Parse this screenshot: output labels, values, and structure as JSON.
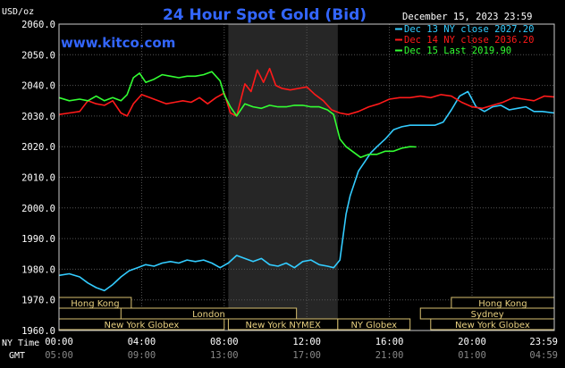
{
  "chart_data": {
    "type": "line",
    "title": "24 Hour Spot Gold (Bid)",
    "watermark": "www.kitco.com",
    "date_label": "December 15, 2023 23:59",
    "ylabel": "USD/oz",
    "ylim": [
      1960,
      2060
    ],
    "yticks": [
      "2060.0",
      "2050.0",
      "2040.0",
      "2030.0",
      "2020.0",
      "2010.0",
      "2000.0",
      "1990.0",
      "1980.0",
      "1970.0",
      "1960.0"
    ],
    "x_range_hours": [
      0,
      23.983
    ],
    "xticks_ny": [
      "00:00",
      "04:00",
      "08:00",
      "12:00",
      "16:00",
      "20:00",
      "23:59"
    ],
    "xticks_gmt": [
      "05:00",
      "09:00",
      "13:00",
      "17:00",
      "21:00",
      "01:00",
      "04:59"
    ],
    "row_labels": {
      "ny": "NY Time",
      "gmt": "GMT"
    },
    "sessions": [
      {
        "label": "Hong Kong",
        "row": 0,
        "start": 0,
        "end": 3.5
      },
      {
        "label": "London",
        "row": 1,
        "start": 3.0,
        "end": 11.5
      },
      {
        "label": "New York Globex",
        "row": 2,
        "start": 0,
        "end": 8.0
      },
      {
        "label": "New York NYMEX",
        "row": 2,
        "start": 8.2,
        "end": 13.5
      },
      {
        "label": "NY Globex",
        "row": 2,
        "start": 13.5,
        "end": 17.0
      },
      {
        "label": "Hong Kong",
        "row": 0,
        "start": 19.0,
        "end": 23.983
      },
      {
        "label": "Sydney",
        "row": 1,
        "start": 17.5,
        "end": 23.983
      },
      {
        "label": "New York Globex",
        "row": 2,
        "start": 18.0,
        "end": 23.983
      }
    ],
    "shaded_region": [
      8.2,
      13.5
    ],
    "colors": {
      "cyan": "#33ccff",
      "red": "#ff1a1a",
      "green": "#33ff33",
      "title": "#3366ff",
      "grid": "#555555"
    },
    "series": [
      {
        "name": "Dec 13 NY close 2027.20",
        "color": "#33ccff",
        "x": [
          0,
          0.5,
          1.0,
          1.4,
          1.8,
          2.2,
          2.6,
          3.0,
          3.4,
          3.8,
          4.2,
          4.6,
          5.0,
          5.4,
          5.8,
          6.2,
          6.6,
          7.0,
          7.4,
          7.8,
          8.2,
          8.6,
          9.0,
          9.4,
          9.8,
          10.2,
          10.6,
          11.0,
          11.4,
          11.8,
          12.2,
          12.6,
          13.0,
          13.3,
          13.6,
          13.9,
          14.1,
          14.3,
          14.5,
          14.8,
          15.1,
          15.4,
          15.8,
          16.2,
          16.6,
          17.0,
          17.4,
          17.8,
          18.2,
          18.6,
          19.0,
          19.4,
          19.8,
          20.2,
          20.6,
          21.0,
          21.4,
          21.8,
          22.2,
          22.6,
          23.0,
          23.4,
          23.983
        ],
        "y": [
          1978.0,
          1978.5,
          1977.5,
          1975.5,
          1974.0,
          1973.0,
          1975.0,
          1977.5,
          1979.5,
          1980.5,
          1981.5,
          1981.0,
          1982.0,
          1982.5,
          1982.0,
          1983.0,
          1982.5,
          1983.0,
          1982.0,
          1980.5,
          1982.0,
          1984.5,
          1983.5,
          1982.5,
          1983.5,
          1981.5,
          1981.0,
          1982.0,
          1980.5,
          1982.5,
          1983.0,
          1981.5,
          1981.0,
          1980.5,
          1983.0,
          1998.0,
          2004.0,
          2008.0,
          2012.0,
          2015.0,
          2018.0,
          2020.0,
          2022.5,
          2025.5,
          2026.5,
          2027.0,
          2027.0,
          2027.0,
          2027.0,
          2028.0,
          2032.0,
          2036.5,
          2038.0,
          2033.0,
          2031.5,
          2033.0,
          2033.5,
          2032.0,
          2032.5,
          2033.0,
          2031.5,
          2031.5,
          2031.0
        ]
      },
      {
        "name": "Dec 14 NY close 2036.20",
        "color": "#ff1a1a",
        "x": [
          0,
          0.5,
          1.0,
          1.4,
          1.8,
          2.2,
          2.6,
          3.0,
          3.3,
          3.6,
          4.0,
          4.4,
          4.8,
          5.2,
          5.6,
          6.0,
          6.4,
          6.8,
          7.2,
          7.6,
          8.0,
          8.3,
          8.6,
          9.0,
          9.3,
          9.6,
          9.9,
          10.2,
          10.5,
          10.8,
          11.2,
          11.6,
          12.0,
          12.4,
          12.8,
          13.2,
          13.6,
          14.0,
          14.5,
          15.0,
          15.5,
          16.0,
          16.5,
          17.0,
          17.5,
          18.0,
          18.5,
          19.0,
          19.5,
          20.0,
          20.5,
          21.0,
          21.5,
          22.0,
          22.5,
          23.0,
          23.5,
          23.983
        ],
        "y": [
          2030.5,
          2031.0,
          2031.5,
          2035.0,
          2034.0,
          2033.5,
          2035.0,
          2031.0,
          2030.0,
          2034.0,
          2037.0,
          2036.0,
          2035.0,
          2034.0,
          2034.5,
          2035.0,
          2034.5,
          2036.0,
          2034.0,
          2036.0,
          2037.5,
          2031.0,
          2030.0,
          2040.5,
          2038.0,
          2045.0,
          2041.0,
          2045.5,
          2040.0,
          2039.0,
          2038.5,
          2039.0,
          2039.5,
          2037.0,
          2035.0,
          2032.0,
          2031.0,
          2030.5,
          2031.5,
          2033.0,
          2034.0,
          2035.5,
          2036.0,
          2036.0,
          2036.5,
          2036.0,
          2037.0,
          2036.5,
          2034.5,
          2033.0,
          2032.5,
          2033.5,
          2034.5,
          2036.0,
          2035.5,
          2035.0,
          2036.5,
          2036.2
        ]
      },
      {
        "name": "Dec 15 Last 2019.90",
        "color": "#33ff33",
        "x": [
          0,
          0.5,
          1.0,
          1.4,
          1.8,
          2.2,
          2.6,
          3.0,
          3.3,
          3.6,
          3.9,
          4.2,
          4.6,
          5.0,
          5.4,
          5.8,
          6.2,
          6.6,
          7.0,
          7.4,
          7.8,
          8.0,
          8.3,
          8.6,
          9.0,
          9.4,
          9.8,
          10.2,
          10.6,
          11.0,
          11.4,
          11.8,
          12.2,
          12.6,
          13.0,
          13.3,
          13.6,
          13.9,
          14.2,
          14.6,
          15.0,
          15.4,
          15.8,
          16.2,
          16.6,
          17.0,
          17.3
        ],
        "y": [
          2036.0,
          2035.0,
          2035.5,
          2035.0,
          2036.5,
          2035.0,
          2036.0,
          2035.0,
          2037.0,
          2042.5,
          2044.0,
          2041.0,
          2042.0,
          2043.5,
          2043.0,
          2042.5,
          2043.0,
          2043.0,
          2043.5,
          2044.5,
          2041.5,
          2037.0,
          2033.0,
          2030.0,
          2034.0,
          2033.0,
          2032.5,
          2033.5,
          2033.0,
          2033.0,
          2033.5,
          2033.5,
          2033.0,
          2033.0,
          2032.0,
          2030.5,
          2022.5,
          2020.0,
          2018.5,
          2016.5,
          2017.5,
          2017.5,
          2018.5,
          2018.5,
          2019.5,
          2020.0,
          2019.9
        ]
      }
    ]
  }
}
